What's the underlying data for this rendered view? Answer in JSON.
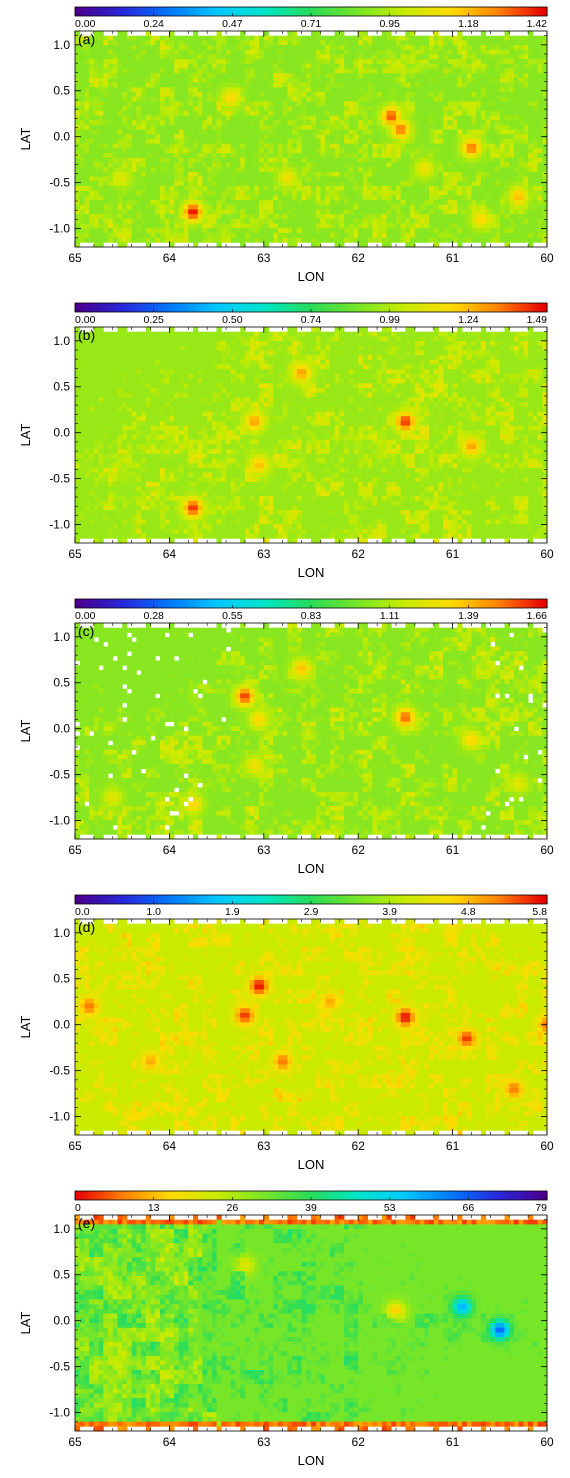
{
  "chart_data": [
    {
      "type": "heatmap",
      "panel_label": "(a)",
      "xlabel": "LON",
      "ylabel": "LAT",
      "xlim": [
        65,
        60
      ],
      "ylim": [
        -1.2,
        1.15
      ],
      "xticks": [
        "65",
        "64",
        "63",
        "62",
        "61",
        "60"
      ],
      "yticks": [
        "1.0",
        "0.5",
        "0.0",
        "-0.5",
        "-1.0"
      ],
      "colorbar": {
        "ticks": [
          "0.00",
          "0.24",
          "0.47",
          "0.71",
          "0.95",
          "1.18",
          "1.42"
        ],
        "min": 0,
        "max": 1.42,
        "colormap": "rainbow"
      },
      "background_level": 0.62,
      "hotspots": [
        {
          "lon": 63.75,
          "lat": -0.82,
          "value": 1.42
        },
        {
          "lon": 61.65,
          "lat": 0.22,
          "value": 1.35
        },
        {
          "lon": 61.55,
          "lat": 0.08,
          "value": 1.3
        },
        {
          "lon": 60.8,
          "lat": -0.12,
          "value": 1.3
        },
        {
          "lon": 60.3,
          "lat": -0.65,
          "value": 1.2
        },
        {
          "lon": 63.35,
          "lat": 0.42,
          "value": 1.15
        },
        {
          "lon": 61.3,
          "lat": -0.35,
          "value": 1.1
        },
        {
          "lon": 62.75,
          "lat": -0.45,
          "value": 1.1
        },
        {
          "lon": 64.5,
          "lat": -0.45,
          "value": 1.05
        },
        {
          "lon": 60.7,
          "lat": -0.9,
          "value": 1.15
        }
      ]
    },
    {
      "type": "heatmap",
      "panel_label": "(b)",
      "xlabel": "LON",
      "ylabel": "LAT",
      "xlim": [
        65,
        60
      ],
      "ylim": [
        -1.2,
        1.15
      ],
      "xticks": [
        "65",
        "64",
        "63",
        "62",
        "61",
        "60"
      ],
      "yticks": [
        "1.0",
        "0.5",
        "0.0",
        "-0.5",
        "-1.0"
      ],
      "colorbar": {
        "ticks": [
          "0.00",
          "0.25",
          "0.50",
          "0.74",
          "0.99",
          "1.24",
          "1.49"
        ],
        "min": 0,
        "max": 1.49,
        "colormap": "rainbow"
      },
      "background_level": 0.64,
      "hotspots": [
        {
          "lon": 63.75,
          "lat": -0.82,
          "value": 1.45
        },
        {
          "lon": 61.5,
          "lat": 0.12,
          "value": 1.45
        },
        {
          "lon": 62.6,
          "lat": 0.65,
          "value": 1.3
        },
        {
          "lon": 63.1,
          "lat": 0.12,
          "value": 1.3
        },
        {
          "lon": 63.05,
          "lat": -0.35,
          "value": 1.25
        },
        {
          "lon": 60.8,
          "lat": -0.15,
          "value": 1.3
        },
        {
          "lon": 64.5,
          "lat": -0.45,
          "value": 1.0
        }
      ]
    },
    {
      "type": "heatmap",
      "panel_label": "(c)",
      "xlabel": "LON",
      "ylabel": "LAT",
      "xlim": [
        65,
        60
      ],
      "ylim": [
        -1.2,
        1.15
      ],
      "xticks": [
        "65",
        "64",
        "63",
        "62",
        "61",
        "60"
      ],
      "yticks": [
        "1.0",
        "0.5",
        "0.0",
        "-0.5",
        "-1.0"
      ],
      "colorbar": {
        "ticks": [
          "0.00",
          "0.28",
          "0.55",
          "0.83",
          "1.11",
          "1.39",
          "1.66"
        ],
        "min": 0,
        "max": 1.66,
        "colormap": "rainbow"
      },
      "background_level": 0.62,
      "hotspots": [
        {
          "lon": 63.2,
          "lat": 0.35,
          "value": 1.6
        },
        {
          "lon": 61.5,
          "lat": 0.12,
          "value": 1.55
        },
        {
          "lon": 62.6,
          "lat": 0.65,
          "value": 1.4
        },
        {
          "lon": 63.05,
          "lat": 0.1,
          "value": 1.35
        },
        {
          "lon": 63.1,
          "lat": -0.4,
          "value": 1.3
        },
        {
          "lon": 63.75,
          "lat": -0.82,
          "value": 1.35
        },
        {
          "lon": 60.8,
          "lat": -0.12,
          "value": 1.35
        },
        {
          "lon": 60.3,
          "lat": -0.6,
          "value": 1.25
        },
        {
          "lon": 64.6,
          "lat": -0.75,
          "value": 1.25
        }
      ]
    },
    {
      "type": "heatmap",
      "panel_label": "(d)",
      "xlabel": "LON",
      "ylabel": "LAT",
      "xlim": [
        65,
        60
      ],
      "ylim": [
        -1.2,
        1.15
      ],
      "xticks": [
        "65",
        "64",
        "63",
        "62",
        "61",
        "60"
      ],
      "yticks": [
        "1.0",
        "0.5",
        "0.0",
        "-0.5",
        "-1.0"
      ],
      "colorbar": {
        "ticks": [
          "0.0",
          "1.0",
          "1.9",
          "2.9",
          "3.9",
          "4.8",
          "5.8"
        ],
        "min": 0,
        "max": 5.8,
        "colormap": "rainbow"
      },
      "background_level": 0.7,
      "hotspots": [
        {
          "lon": 63.05,
          "lat": 0.42,
          "value": 5.8
        },
        {
          "lon": 61.5,
          "lat": 0.08,
          "value": 5.8
        },
        {
          "lon": 63.2,
          "lat": 0.1,
          "value": 5.6
        },
        {
          "lon": 60.85,
          "lat": -0.15,
          "value": 5.6
        },
        {
          "lon": 62.8,
          "lat": -0.4,
          "value": 5.3
        },
        {
          "lon": 64.85,
          "lat": 0.2,
          "value": 5.3
        },
        {
          "lon": 60.35,
          "lat": -0.7,
          "value": 5.3
        },
        {
          "lon": 60.0,
          "lat": 0.0,
          "value": 5.3
        },
        {
          "lon": 62.3,
          "lat": 0.25,
          "value": 5.0
        },
        {
          "lon": 64.2,
          "lat": -0.4,
          "value": 5.0
        }
      ]
    },
    {
      "type": "heatmap",
      "panel_label": "(e)",
      "xlabel": "LON",
      "ylabel": "LAT",
      "xlim": [
        65,
        60
      ],
      "ylim": [
        -1.2,
        1.15
      ],
      "xticks": [
        "65",
        "64",
        "63",
        "62",
        "61",
        "60"
      ],
      "yticks": [
        "1.0",
        "0.5",
        "0.0",
        "-0.5",
        "-1.0"
      ],
      "colorbar": {
        "ticks": [
          "0",
          "13",
          "26",
          "39",
          "53",
          "66",
          "79"
        ],
        "min": 0,
        "max": 79,
        "colormap": "rainbow_reversed"
      },
      "background_level": 0.4,
      "gradient_east": 0.25,
      "hotspots": [
        {
          "lon": 60.5,
          "lat": -0.1,
          "value": 66
        },
        {
          "lon": 60.9,
          "lat": 0.15,
          "value": 58
        },
        {
          "lon": 61.6,
          "lat": 0.1,
          "value": 14
        },
        {
          "lon": 63.2,
          "lat": 0.6,
          "value": 20
        }
      ]
    }
  ]
}
